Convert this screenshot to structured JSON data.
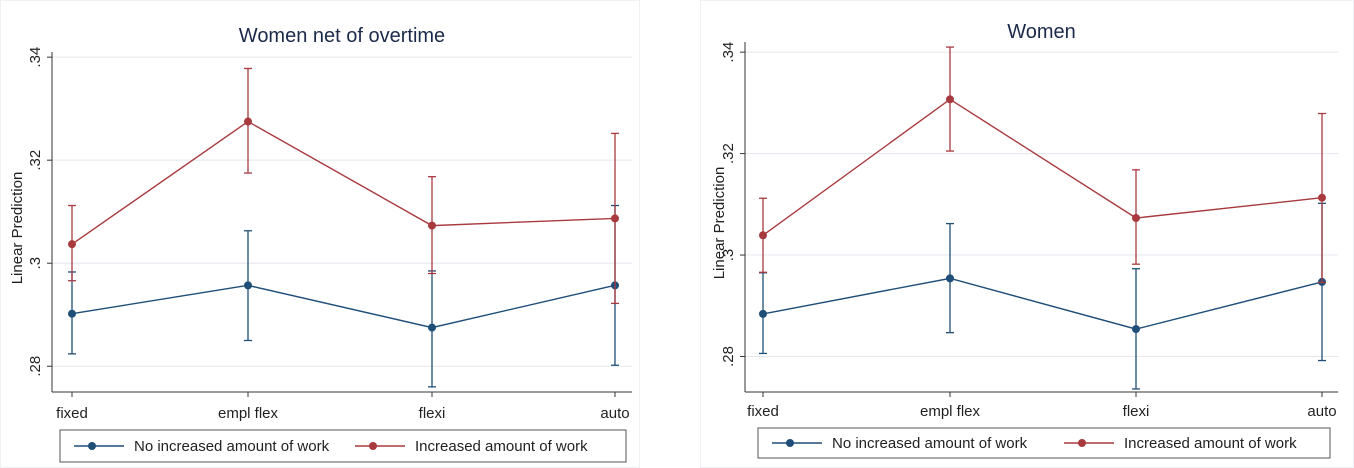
{
  "colors": {
    "series_no": "#1f4e79",
    "series_inc": "#a83a3e",
    "grid": "#e3e7ee",
    "axis": "#333333"
  },
  "chart_data": [
    {
      "type": "line",
      "title": "Women net of overtime",
      "ylabel": "Linear Prediction",
      "xlabel": "",
      "categories": [
        "fixed",
        "empl flex",
        "flexi",
        "auto"
      ],
      "ylim": [
        0.275,
        0.341
      ],
      "yticks": [
        0.28,
        0.3,
        0.32,
        0.34
      ],
      "ytick_labels": [
        ".28",
        ".3",
        ".32",
        ".34"
      ],
      "grid": true,
      "legend_position": "bottom",
      "series": [
        {
          "name": "No increased amount of work",
          "color": "#1f4e79",
          "values": [
            0.2902,
            0.2957,
            0.2875,
            0.2957
          ],
          "ci_low": [
            0.2824,
            0.285,
            0.276,
            0.2802
          ],
          "ci_high": [
            0.2983,
            0.3063,
            0.2985,
            0.3112
          ]
        },
        {
          "name": "Increased amount of work",
          "color": "#a83a3e",
          "values": [
            0.3037,
            0.3275,
            0.3073,
            0.3087
          ],
          "ci_low": [
            0.2966,
            0.3175,
            0.298,
            0.2922
          ],
          "ci_high": [
            0.3112,
            0.3378,
            0.3168,
            0.3252
          ]
        }
      ]
    },
    {
      "type": "line",
      "title": "Women",
      "ylabel": "Linear Prediction",
      "xlabel": "",
      "categories": [
        "fixed",
        "empl flex",
        "flexi",
        "auto"
      ],
      "ylim": [
        0.273,
        0.342
      ],
      "yticks": [
        0.28,
        0.3,
        0.32,
        0.34
      ],
      "ytick_labels": [
        ".28",
        ".3",
        ".32",
        ".34"
      ],
      "grid": true,
      "legend_position": "bottom",
      "series": [
        {
          "name": "No increased amount of work",
          "color": "#1f4e79",
          "values": [
            0.2884,
            0.2954,
            0.2854,
            0.2947
          ],
          "ci_low": [
            0.2806,
            0.2847,
            0.2736,
            0.2792
          ],
          "ci_high": [
            0.2965,
            0.3062,
            0.2973,
            0.3102
          ]
        },
        {
          "name": "Increased amount of work",
          "color": "#a83a3e",
          "values": [
            0.3039,
            0.3307,
            0.3073,
            0.3113
          ],
          "ci_low": [
            0.2966,
            0.3205,
            0.2982,
            0.2946
          ],
          "ci_high": [
            0.3112,
            0.341,
            0.3168,
            0.3279
          ]
        }
      ]
    }
  ]
}
